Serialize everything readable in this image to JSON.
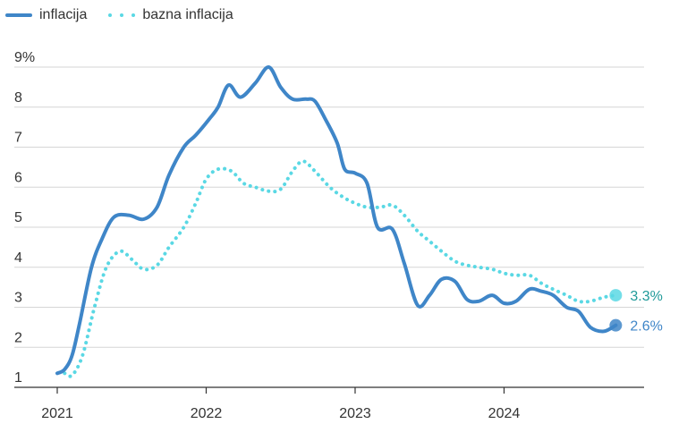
{
  "chart_data": {
    "type": "line",
    "y_unit_suffix": "%",
    "ylim": [
      1,
      9
    ],
    "xlim": [
      2021.0,
      2024.85
    ],
    "y_ticks": [
      1,
      2,
      3,
      4,
      5,
      6,
      7,
      8,
      9
    ],
    "y_tick_labels": [
      "1",
      "2",
      "3",
      "4",
      "5",
      "6",
      "7",
      "8",
      "9%"
    ],
    "x_ticks": [
      2021,
      2022,
      2023,
      2024
    ],
    "x_tick_labels": [
      "2021",
      "2022",
      "2023",
      "2024"
    ],
    "grid": true,
    "legend_position": "top-left",
    "series": [
      {
        "name": "inflacija",
        "color": "#3f86c8",
        "style": "solid",
        "end_label": "2.6%",
        "points": [
          [
            2021.0,
            1.35
          ],
          [
            2021.05,
            1.45
          ],
          [
            2021.1,
            1.8
          ],
          [
            2021.15,
            2.6
          ],
          [
            2021.23,
            4.0
          ],
          [
            2021.3,
            4.7
          ],
          [
            2021.38,
            5.25
          ],
          [
            2021.48,
            5.3
          ],
          [
            2021.58,
            5.2
          ],
          [
            2021.67,
            5.5
          ],
          [
            2021.75,
            6.3
          ],
          [
            2021.85,
            7.0
          ],
          [
            2021.93,
            7.3
          ],
          [
            2022.02,
            7.7
          ],
          [
            2022.08,
            8.0
          ],
          [
            2022.15,
            8.55
          ],
          [
            2022.23,
            8.25
          ],
          [
            2022.33,
            8.6
          ],
          [
            2022.42,
            9.0
          ],
          [
            2022.5,
            8.5
          ],
          [
            2022.58,
            8.2
          ],
          [
            2022.67,
            8.2
          ],
          [
            2022.73,
            8.15
          ],
          [
            2022.8,
            7.7
          ],
          [
            2022.88,
            7.1
          ],
          [
            2022.93,
            6.45
          ],
          [
            2023.0,
            6.35
          ],
          [
            2023.08,
            6.1
          ],
          [
            2023.15,
            5.0
          ],
          [
            2023.25,
            4.95
          ],
          [
            2023.33,
            4.1
          ],
          [
            2023.42,
            3.05
          ],
          [
            2023.5,
            3.3
          ],
          [
            2023.58,
            3.7
          ],
          [
            2023.67,
            3.65
          ],
          [
            2023.75,
            3.2
          ],
          [
            2023.83,
            3.15
          ],
          [
            2023.92,
            3.3
          ],
          [
            2024.0,
            3.1
          ],
          [
            2024.08,
            3.15
          ],
          [
            2024.17,
            3.45
          ],
          [
            2024.25,
            3.4
          ],
          [
            2024.33,
            3.3
          ],
          [
            2024.42,
            3.0
          ],
          [
            2024.5,
            2.9
          ],
          [
            2024.58,
            2.5
          ],
          [
            2024.67,
            2.4
          ],
          [
            2024.75,
            2.55
          ]
        ]
      },
      {
        "name": "bazna inflacija",
        "color": "#5ad8e4",
        "style": "dotted",
        "end_label": "3.3%",
        "points": [
          [
            2021.05,
            1.35
          ],
          [
            2021.1,
            1.3
          ],
          [
            2021.17,
            1.8
          ],
          [
            2021.25,
            3.0
          ],
          [
            2021.33,
            4.0
          ],
          [
            2021.42,
            4.4
          ],
          [
            2021.5,
            4.2
          ],
          [
            2021.58,
            3.95
          ],
          [
            2021.67,
            4.05
          ],
          [
            2021.75,
            4.5
          ],
          [
            2021.85,
            5.0
          ],
          [
            2021.93,
            5.6
          ],
          [
            2022.0,
            6.2
          ],
          [
            2022.08,
            6.45
          ],
          [
            2022.17,
            6.4
          ],
          [
            2022.25,
            6.1
          ],
          [
            2022.33,
            6.0
          ],
          [
            2022.42,
            5.9
          ],
          [
            2022.5,
            5.95
          ],
          [
            2022.58,
            6.4
          ],
          [
            2022.65,
            6.65
          ],
          [
            2022.73,
            6.4
          ],
          [
            2022.83,
            6.0
          ],
          [
            2022.92,
            5.75
          ],
          [
            2023.0,
            5.6
          ],
          [
            2023.08,
            5.5
          ],
          [
            2023.17,
            5.5
          ],
          [
            2023.25,
            5.55
          ],
          [
            2023.33,
            5.3
          ],
          [
            2023.42,
            4.9
          ],
          [
            2023.5,
            4.65
          ],
          [
            2023.58,
            4.4
          ],
          [
            2023.67,
            4.15
          ],
          [
            2023.75,
            4.05
          ],
          [
            2023.83,
            4.0
          ],
          [
            2023.92,
            3.95
          ],
          [
            2024.0,
            3.85
          ],
          [
            2024.08,
            3.8
          ],
          [
            2024.17,
            3.8
          ],
          [
            2024.25,
            3.6
          ],
          [
            2024.33,
            3.45
          ],
          [
            2024.42,
            3.3
          ],
          [
            2024.5,
            3.15
          ],
          [
            2024.58,
            3.15
          ],
          [
            2024.67,
            3.25
          ],
          [
            2024.75,
            3.3
          ]
        ]
      }
    ]
  }
}
